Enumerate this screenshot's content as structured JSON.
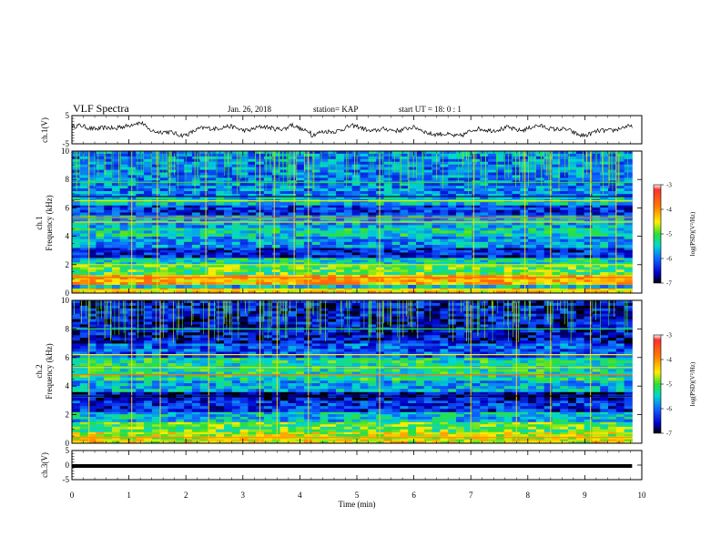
{
  "header": {
    "title": "VLF Spectra",
    "date": "Jan. 26, 2018",
    "station": "station= KAP",
    "start": "start  UT =   18: 0  : 1"
  },
  "chart_data": {
    "type": "heatmap",
    "x": {
      "label": "Time  (min)",
      "range": [
        0,
        10
      ],
      "data_end": 9.83,
      "ticks": [
        "0",
        "1",
        "2",
        "3",
        "4",
        "5",
        "6",
        "7",
        "8",
        "9",
        "10"
      ]
    },
    "panels": [
      {
        "name": "ch1-waveform",
        "type": "line",
        "ylabel": "ch.1(V)",
        "yrange": [
          -5,
          5
        ],
        "yticks": [
          "5",
          "-5"
        ]
      },
      {
        "name": "ch1-spectrogram",
        "type": "heatmap",
        "ylabel_top": "ch.1",
        "ylabel": "Frequency (kHz)",
        "yrange": [
          0,
          10
        ],
        "yticks": [
          "0",
          "2",
          "4",
          "6",
          "8",
          "10"
        ],
        "colorbar": {
          "label": "log(PSD)(V²/Hz)",
          "range": [
            -7,
            -3
          ],
          "ticks": [
            "-3",
            "-4",
            "-5",
            "-6",
            "-7"
          ]
        },
        "bands": [
          {
            "low": 0.0,
            "high": 0.35,
            "level": -4.3
          },
          {
            "low": 0.35,
            "high": 0.6,
            "level": -5.6
          },
          {
            "low": 0.6,
            "high": 1.3,
            "level": -4.2
          },
          {
            "low": 1.3,
            "high": 2.0,
            "level": -5.0
          },
          {
            "low": 2.0,
            "high": 2.5,
            "level": -5.4
          },
          {
            "low": 2.5,
            "high": 3.2,
            "level": -6.4
          },
          {
            "low": 3.2,
            "high": 4.0,
            "level": -5.8
          },
          {
            "low": 4.0,
            "high": 4.6,
            "level": -5.4
          },
          {
            "low": 4.6,
            "high": 5.5,
            "level": -5.7
          },
          {
            "low": 5.5,
            "high": 6.2,
            "level": -6.3
          },
          {
            "low": 6.2,
            "high": 6.8,
            "level": -5.6
          },
          {
            "low": 6.8,
            "high": 10.0,
            "level": -5.9
          }
        ],
        "lines": [
          {
            "freq": 0.2,
            "level": -4.6
          },
          {
            "freq": 1.1,
            "level": -3.6
          },
          {
            "freq": 2.0,
            "level": -4.6
          },
          {
            "freq": 5.3,
            "level": -3.8
          },
          {
            "freq": 5.0,
            "level": -4.4
          },
          {
            "freq": 6.5,
            "level": -4.6
          },
          {
            "freq": 6.8,
            "level": -6.8
          },
          {
            "freq": 7.8,
            "level": -5.0
          }
        ],
        "bursts_min": [
          0.3,
          1.05,
          1.5,
          2.35,
          3.3,
          3.55,
          3.9,
          4.15,
          5.4,
          7.05,
          7.95,
          8.4,
          9.1,
          9.55
        ]
      },
      {
        "name": "ch2-spectrogram",
        "type": "heatmap",
        "ylabel_top": "ch.2",
        "ylabel": "Frequency (kHz)",
        "yrange": [
          0,
          10
        ],
        "yticks": [
          "0",
          "2",
          "4",
          "6",
          "8",
          "10"
        ],
        "colorbar": {
          "label": "log(PSD)(V²/Hz)",
          "range": [
            -7,
            -3
          ],
          "ticks": [
            "-3",
            "-4",
            "-5",
            "-6",
            "-7"
          ]
        },
        "bands": [
          {
            "low": 0.0,
            "high": 0.3,
            "level": -4.5
          },
          {
            "low": 0.3,
            "high": 0.8,
            "level": -4.6
          },
          {
            "low": 0.8,
            "high": 1.5,
            "level": -5.0
          },
          {
            "low": 1.5,
            "high": 2.2,
            "level": -5.6
          },
          {
            "low": 2.2,
            "high": 3.0,
            "level": -6.3
          },
          {
            "low": 3.0,
            "high": 3.6,
            "level": -6.6
          },
          {
            "low": 3.6,
            "high": 4.4,
            "level": -5.7
          },
          {
            "low": 4.4,
            "high": 6.0,
            "level": -5.3
          },
          {
            "low": 6.0,
            "high": 7.0,
            "level": -6.1
          },
          {
            "low": 7.0,
            "high": 10.0,
            "level": -6.5
          }
        ],
        "lines": [
          {
            "freq": 0.4,
            "level": -4.0
          },
          {
            "freq": 3.3,
            "level": -6.9
          },
          {
            "freq": 4.8,
            "level": -3.8
          },
          {
            "freq": 5.3,
            "level": -4.6
          },
          {
            "freq": 6.2,
            "level": -4.5
          },
          {
            "freq": 8.0,
            "level": -5.2
          }
        ],
        "bursts_min": [
          0.3,
          1.05,
          1.55,
          2.4,
          3.3,
          3.6,
          4.15,
          5.4,
          7.0,
          7.8,
          8.4,
          9.1
        ]
      },
      {
        "name": "ch3-waveform",
        "type": "line",
        "ylabel": "ch.3(V)",
        "yrange": [
          -5,
          5
        ],
        "yticks": [
          "5",
          "0",
          "-5"
        ],
        "constant_value": 0
      }
    ]
  }
}
